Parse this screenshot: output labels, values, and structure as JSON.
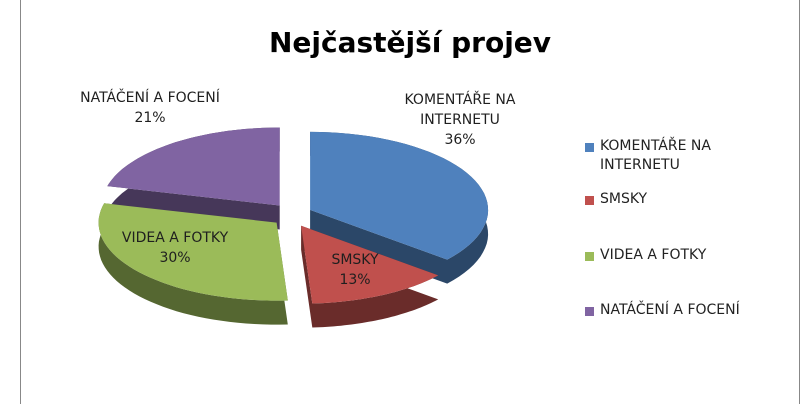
{
  "chart_data": {
    "type": "pie",
    "title": "Nejčastější projev",
    "categories": [
      "KOMENTÁŘE NA INTERNETU",
      "SMSKY",
      "VIDEA A FOTKY",
      "NATÁČENÍ A FOCENÍ"
    ],
    "values": [
      36,
      13,
      30,
      21
    ],
    "value_labels": [
      "36%",
      "13%",
      "30%",
      "21%"
    ],
    "colors": [
      "#4f81bd",
      "#c0504d",
      "#9bbb59",
      "#8064a2"
    ],
    "legend": "right"
  }
}
